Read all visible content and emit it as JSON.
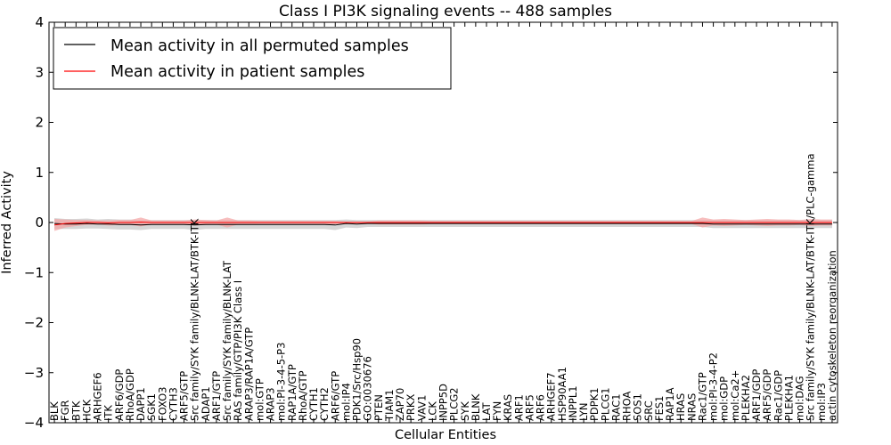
{
  "chart_data": {
    "type": "line",
    "title": "Class I PI3K signaling events -- 488 samples",
    "xlabel": "Cellular Entities",
    "ylabel": "Inferred Activity",
    "ylim": [
      -4,
      4
    ],
    "yticks": [
      -4,
      -3,
      -2,
      -1,
      0,
      1,
      2,
      3,
      4
    ],
    "grid": false,
    "legend_position": "top-left",
    "categories": [
      "BLK",
      "FGR",
      "BTK",
      "HCK",
      "ARHGEF6",
      "ITK",
      "ARF6/GDP",
      "RhoA/GDP",
      "DAPP1",
      "SGK1",
      "FOXO3",
      "CYTH3",
      "ARF5/GTP",
      "Src family/SYK family/BLNK-LAT/BTK-ITK",
      "ADAP1",
      "ARF1/GTP",
      "Src family/SYK family/BLNK-LAT",
      "RAS family/GTP/PI3K Class I",
      "ARAP3/RAP1A/GTP",
      "mol:GTP",
      "ARAP3",
      "mol:PI-3-4-5-P3",
      "RAP1A/GTP",
      "RhoA/GTP",
      "CYTH1",
      "CYTH2",
      "ARF6/GTP",
      "mol:IP4",
      "PDK1/Src/Hsp90",
      "GO:0030676",
      "PTEN",
      "TIAM1",
      "ZAP70",
      "PRKX",
      "VAV1",
      "LCK",
      "INPP5D",
      "PLCG2",
      "SYK",
      "BLNK",
      "LAT",
      "FYN",
      "KRAS",
      "ARF1",
      "ARF5",
      "ARF6",
      "ARHGEF7",
      "HSP90AA1",
      "INPPL1",
      "LYN",
      "PDPK1",
      "PLCG1",
      "RAC1",
      "RHOA",
      "SOS1",
      "SRC",
      "FES1",
      "RAP1A",
      "HRAS",
      "NRAS",
      "Rac1/GTP",
      "mol:PI-3-4-P2",
      "mol:GDP",
      "mol:Ca2+",
      "PLEKHA2",
      "ARF1/GDP",
      "ARF5/GDP",
      "Rac1/GDP",
      "PLEKHA1",
      "mol:DAG",
      "Src family/SYK family/BLNK-LAT/BTK-ITK/PLC-gamma",
      "mol:IP3",
      "actin cytoskeleton reorganization"
    ],
    "series": [
      {
        "name": "Mean activity in all permuted samples",
        "color": "#000000",
        "band_color": "#c8c8c8",
        "values": [
          -0.02,
          -0.03,
          -0.03,
          -0.02,
          -0.03,
          -0.03,
          -0.04,
          -0.04,
          -0.05,
          -0.04,
          -0.04,
          -0.04,
          -0.04,
          -0.05,
          -0.04,
          -0.04,
          -0.04,
          -0.04,
          -0.04,
          -0.04,
          -0.04,
          -0.04,
          -0.04,
          -0.04,
          -0.04,
          -0.04,
          -0.05,
          -0.02,
          -0.03,
          -0.02,
          -0.02,
          -0.02,
          -0.02,
          -0.02,
          -0.02,
          -0.02,
          -0.02,
          -0.02,
          -0.02,
          -0.02,
          -0.02,
          -0.02,
          -0.02,
          -0.02,
          -0.02,
          -0.02,
          -0.02,
          -0.02,
          -0.02,
          -0.02,
          -0.02,
          -0.02,
          -0.02,
          -0.02,
          -0.02,
          -0.02,
          -0.02,
          -0.02,
          -0.02,
          -0.02,
          -0.02,
          -0.03,
          -0.03,
          -0.03,
          -0.03,
          -0.03,
          -0.03,
          -0.03,
          -0.03,
          -0.03,
          -0.03,
          -0.03,
          -0.03
        ],
        "band": [
          0.11,
          0.1,
          0.1,
          0.1,
          0.09,
          0.1,
          0.1,
          0.1,
          0.1,
          0.09,
          0.09,
          0.09,
          0.09,
          0.1,
          0.09,
          0.09,
          0.09,
          0.09,
          0.09,
          0.09,
          0.09,
          0.09,
          0.09,
          0.09,
          0.09,
          0.09,
          0.1,
          0.08,
          0.08,
          0.07,
          0.07,
          0.07,
          0.07,
          0.07,
          0.07,
          0.07,
          0.07,
          0.07,
          0.07,
          0.07,
          0.07,
          0.07,
          0.07,
          0.07,
          0.07,
          0.07,
          0.07,
          0.07,
          0.07,
          0.07,
          0.07,
          0.07,
          0.07,
          0.07,
          0.07,
          0.07,
          0.07,
          0.07,
          0.07,
          0.07,
          0.07,
          0.08,
          0.08,
          0.08,
          0.08,
          0.08,
          0.08,
          0.08,
          0.08,
          0.08,
          0.08,
          0.08,
          0.08
        ]
      },
      {
        "name": "Mean activity in patient samples",
        "color": "#ff0000",
        "band_color": "#f4a3a3",
        "values": [
          -0.05,
          -0.02,
          -0.01,
          0.0,
          0.0,
          -0.01,
          0.0,
          0.0,
          0.01,
          0.0,
          0.0,
          0.0,
          0.0,
          0.0,
          0.0,
          0.0,
          0.0,
          0.0,
          0.0,
          0.0,
          0.0,
          0.0,
          0.0,
          0.0,
          0.0,
          0.0,
          0.0,
          0.0,
          0.0,
          0.0,
          0.0,
          0.0,
          0.0,
          0.0,
          0.0,
          0.0,
          0.0,
          0.0,
          0.0,
          0.0,
          0.0,
          0.0,
          0.0,
          0.0,
          0.0,
          0.0,
          0.0,
          0.0,
          0.0,
          0.0,
          0.0,
          0.0,
          0.0,
          0.0,
          0.0,
          0.0,
          0.0,
          0.0,
          0.0,
          0.0,
          0.0,
          0.0,
          0.0,
          0.0,
          0.0,
          0.0,
          0.0,
          0.0,
          0.0,
          0.0,
          0.0,
          0.0,
          0.0
        ],
        "band": [
          0.12,
          0.08,
          0.06,
          0.05,
          0.04,
          0.05,
          0.05,
          0.05,
          0.09,
          0.04,
          0.04,
          0.04,
          0.04,
          0.06,
          0.05,
          0.04,
          0.1,
          0.04,
          0.04,
          0.03,
          0.03,
          0.03,
          0.03,
          0.03,
          0.03,
          0.03,
          0.03,
          0.02,
          0.02,
          0.02,
          0.04,
          0.04,
          0.04,
          0.04,
          0.04,
          0.03,
          0.03,
          0.03,
          0.03,
          0.03,
          0.03,
          0.03,
          0.03,
          0.03,
          0.03,
          0.03,
          0.03,
          0.03,
          0.03,
          0.03,
          0.03,
          0.03,
          0.03,
          0.03,
          0.03,
          0.03,
          0.03,
          0.03,
          0.03,
          0.03,
          0.1,
          0.06,
          0.07,
          0.06,
          0.05,
          0.06,
          0.07,
          0.06,
          0.06,
          0.05,
          0.07,
          0.06,
          0.06
        ]
      }
    ]
  }
}
